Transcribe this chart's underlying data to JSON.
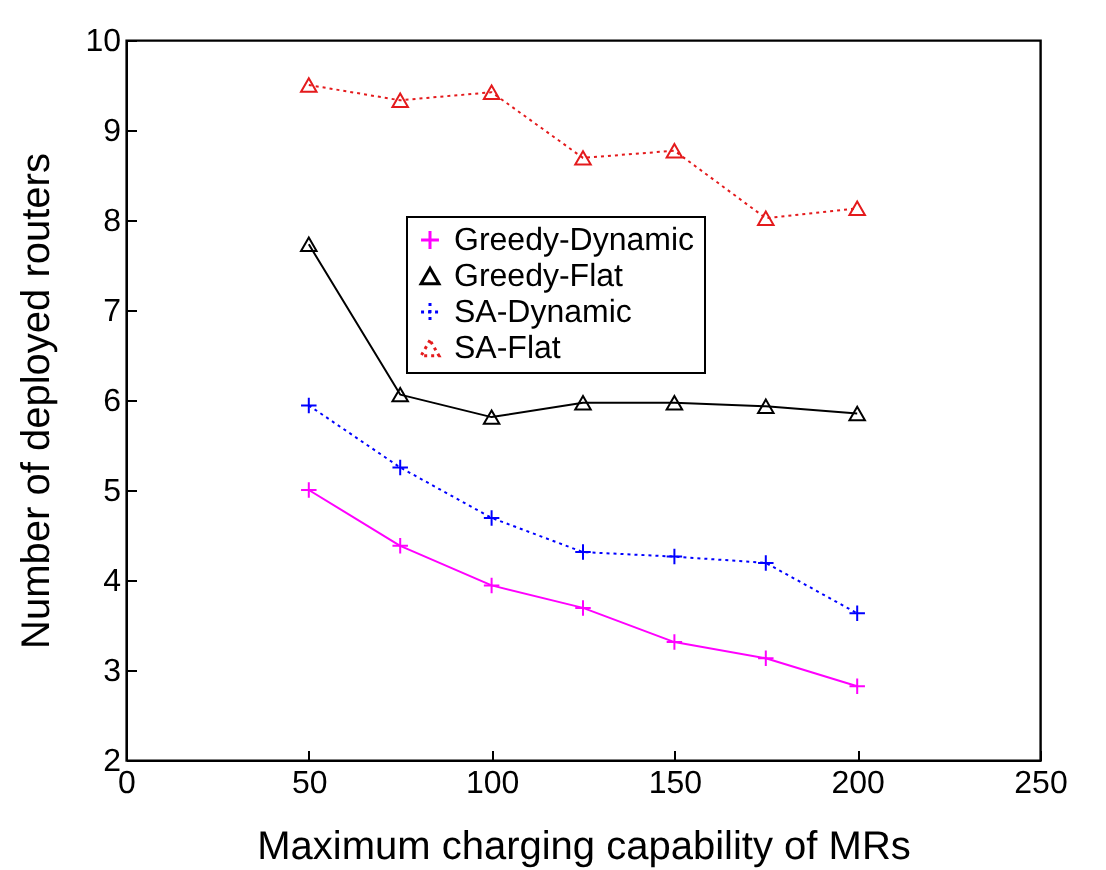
{
  "chart_data": {
    "type": "line",
    "xlabel": "Maximum charging capability of MRs",
    "ylabel": "Number of deployed routers",
    "x": [
      50,
      75,
      100,
      125,
      150,
      175,
      200
    ],
    "series": [
      {
        "name": "Greedy-Dynamic",
        "color": "#ff00ff",
        "marker": "cross",
        "line_style": "solid",
        "values": [
          5.0,
          4.38,
          3.94,
          3.69,
          3.31,
          3.13,
          2.82
        ]
      },
      {
        "name": "Greedy-Flat",
        "color": "#000000",
        "marker": "triangle",
        "line_style": "solid",
        "values": [
          7.73,
          6.06,
          5.81,
          5.97,
          5.97,
          5.93,
          5.85
        ]
      },
      {
        "name": "SA-Dynamic",
        "color": "#0000ff",
        "marker": "cross",
        "line_style": "dotted",
        "values": [
          5.94,
          5.25,
          4.69,
          4.31,
          4.26,
          4.19,
          3.63
        ]
      },
      {
        "name": "SA-Flat",
        "color": "#e41a1c",
        "marker": "triangle",
        "line_style": "dotted",
        "values": [
          9.5,
          9.33,
          9.42,
          8.69,
          8.77,
          8.02,
          8.13
        ]
      }
    ],
    "xlim": [
      0,
      250
    ],
    "xticks": [
      0,
      50,
      100,
      150,
      200,
      250
    ],
    "ylim": [
      2,
      10
    ],
    "yticks": [
      2,
      3,
      4,
      5,
      6,
      7,
      8,
      9,
      10
    ],
    "grid": false,
    "legend": "top"
  }
}
